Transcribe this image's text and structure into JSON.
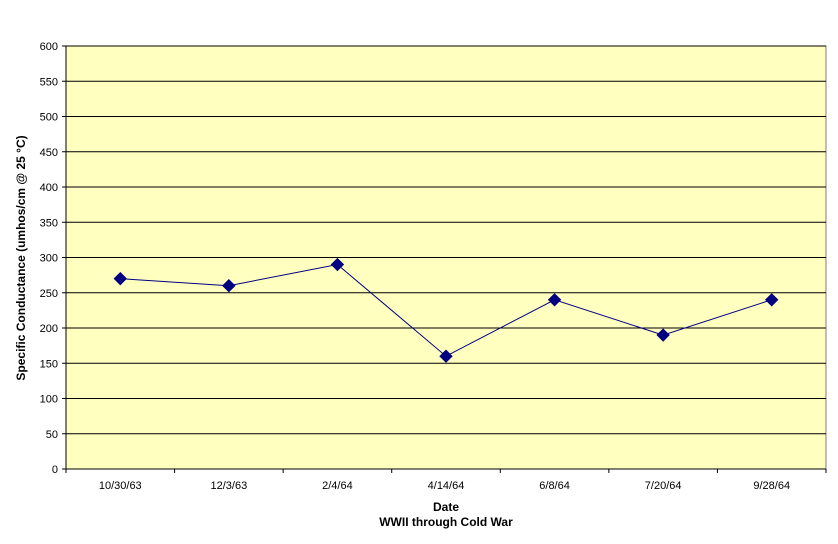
{
  "chart_data": {
    "type": "line",
    "categories": [
      "10/30/63",
      "12/3/63",
      "2/4/64",
      "4/14/64",
      "6/8/64",
      "7/20/64",
      "9/28/64"
    ],
    "series": [
      {
        "values": [
          270,
          260,
          290,
          160,
          240,
          190,
          240
        ]
      }
    ],
    "ylabel": "Specific Conductance (umhos/cm @ 25 °C)",
    "xlabel": "Date",
    "xlabel_sub": "WWII through Cold War",
    "ylim": [
      0,
      600
    ],
    "yticks": [
      0,
      50,
      100,
      150,
      200,
      250,
      300,
      350,
      400,
      450,
      500,
      550,
      600
    ],
    "grid": "horizontal",
    "colors": {
      "plot_background": "#ffffc0",
      "line": "#000080",
      "marker": "#000080",
      "grid": "#000000"
    },
    "marker": "diamond"
  }
}
